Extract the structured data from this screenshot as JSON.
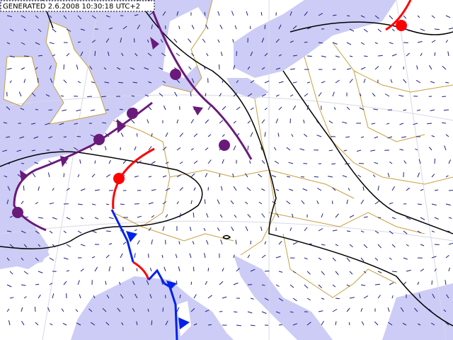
{
  "header": {
    "label": "GENERATED 2.6.2008 10:30:18 UTC+2"
  }
}
